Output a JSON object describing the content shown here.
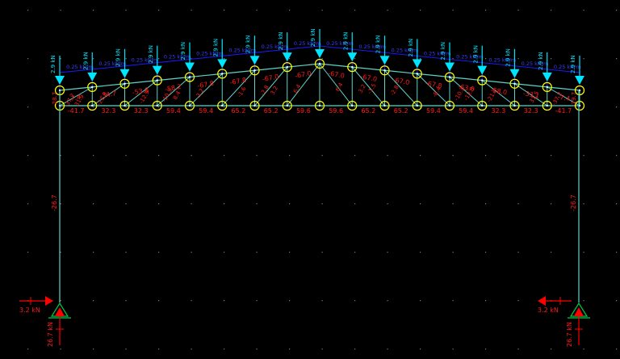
{
  "app": {
    "view": "truss-frame-analysis"
  },
  "colors": {
    "background": "#000000",
    "member": "#5fd3c9",
    "node": "#ffff00",
    "load_arrow": "#00e5ff",
    "load_label": "#00e5ff",
    "udl": "#1a1aff",
    "udl_label": "#3b3bff",
    "force_label": "#ff1a1a",
    "reaction": "#ff0000",
    "support": "#00cc44",
    "grid_dot": "#7a7a7a"
  },
  "loads": {
    "point_load_label": "2.9 kN",
    "udl_label": "0.25 kN/m"
  },
  "reactions": {
    "left_horizontal": "3.2 kN",
    "left_vertical": "26.7 kN",
    "right_horizontal": "3.2 kN",
    "right_vertical": "26.7 kN"
  },
  "column_forces": {
    "left": "-26.7",
    "right": "-26.7"
  },
  "bottom_chord_forces": [
    "-41.7",
    "32.3",
    "32.3",
    "59.4",
    "59.4",
    "65.2",
    "65.2",
    "59.6",
    "59.6",
    "65.2",
    "65.2",
    "59.4",
    "59.4",
    "32.3",
    "32.3",
    "-41.7"
  ],
  "top_chord_forces": [
    "7.4",
    "-34.7",
    "-53.8",
    "-58.2",
    "-67.8",
    "-67.8",
    "-67.0",
    "-67.0",
    "-67.0",
    "-67.0",
    "-67.0",
    "-67.8",
    "-63.0",
    "-58.0",
    "-33.1",
    "-7.4"
  ],
  "web_forces": [
    "-37.2",
    "31.9",
    "-21.8",
    "-12.9",
    "-10.3",
    "8.4",
    "-3.2",
    "-1.6",
    "-2.8",
    "3.2",
    "6.4",
    "6.4",
    "3.2",
    "-1.5",
    "-2.8",
    "-8.4",
    "-10.3",
    "-12.9",
    "-21.6",
    "31.5",
    "-37.2"
  ],
  "end_web_forces": [
    "-28.7",
    "-29.7"
  ]
}
